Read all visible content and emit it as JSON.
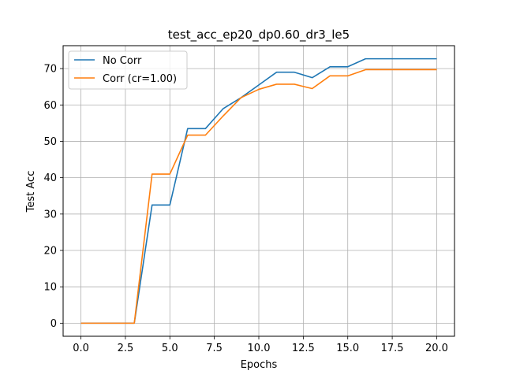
{
  "chart_data": {
    "type": "line",
    "title": "test_acc_ep20_dp0.60_dr3_le5",
    "xlabel": "Epochs",
    "ylabel": "Test Acc",
    "xlim": [
      -1.0,
      21.0
    ],
    "ylim": [
      -3.6,
      76.3
    ],
    "xticks": [
      0.0,
      2.5,
      5.0,
      7.5,
      10.0,
      12.5,
      15.0,
      17.5,
      20.0
    ],
    "xtick_labels": [
      "0.0",
      "2.5",
      "5.0",
      "7.5",
      "10.0",
      "12.5",
      "15.0",
      "17.5",
      "20.0"
    ],
    "yticks": [
      0,
      10,
      20,
      30,
      40,
      50,
      60,
      70
    ],
    "ytick_labels": [
      "0",
      "10",
      "20",
      "30",
      "40",
      "50",
      "60",
      "70"
    ],
    "grid": true,
    "legend_position": "top-left",
    "x": [
      0,
      1,
      2,
      3,
      4,
      5,
      6,
      7,
      8,
      9,
      10,
      11,
      12,
      13,
      14,
      15,
      16,
      17,
      18,
      19,
      20
    ],
    "series": [
      {
        "name": "No Corr",
        "color": "#1f77b4",
        "values": [
          0,
          0,
          0,
          0,
          32.5,
          32.5,
          53.5,
          53.5,
          59,
          62,
          65.5,
          69,
          69,
          67.5,
          70.5,
          70.5,
          72.7,
          72.7,
          72.7,
          72.7,
          72.7
        ]
      },
      {
        "name": "Corr (cr=1.00)",
        "color": "#ff7f0e",
        "values": [
          0,
          0,
          0,
          0,
          41,
          41,
          51.7,
          51.7,
          57,
          62,
          64.3,
          65.7,
          65.7,
          64.5,
          68,
          68,
          69.7,
          69.7,
          69.7,
          69.7,
          69.7
        ]
      }
    ]
  }
}
